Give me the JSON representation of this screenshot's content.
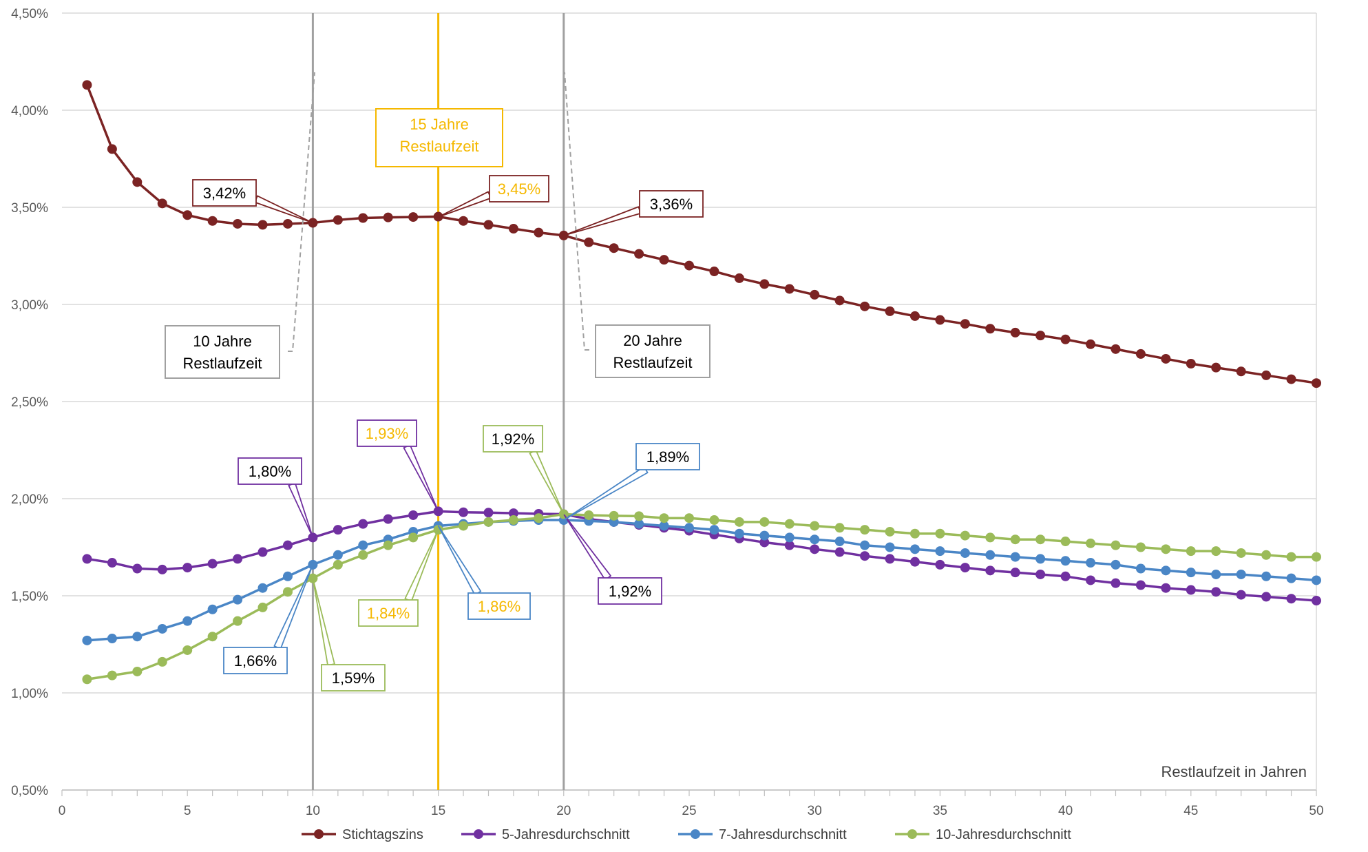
{
  "chart_data": {
    "type": "line",
    "title": "",
    "xlabel": "Restlaufzeit in Jahren",
    "ylabel": "",
    "xlim": [
      0,
      50
    ],
    "ylim": [
      0.5,
      4.5
    ],
    "grid": "horizontal",
    "legend_position": "bottom",
    "x_ticks": [
      0,
      5,
      10,
      15,
      20,
      25,
      30,
      35,
      40,
      45,
      50
    ],
    "x_tick_labels": [
      "0",
      "5",
      "10",
      "15",
      "20",
      "25",
      "30",
      "35",
      "40",
      "45",
      "50"
    ],
    "y_ticks": [
      0.5,
      1.0,
      1.5,
      2.0,
      2.5,
      3.0,
      3.5,
      4.0,
      4.5
    ],
    "y_tick_labels": [
      "0,50%",
      "1,00%",
      "1,50%",
      "2,00%",
      "2,50%",
      "3,00%",
      "3,50%",
      "4,00%",
      "4,50%"
    ],
    "x": [
      1,
      2,
      3,
      4,
      5,
      6,
      7,
      8,
      9,
      10,
      11,
      12,
      13,
      14,
      15,
      16,
      17,
      18,
      19,
      20,
      21,
      22,
      23,
      24,
      25,
      26,
      27,
      28,
      29,
      30,
      31,
      32,
      33,
      34,
      35,
      36,
      37,
      38,
      39,
      40,
      41,
      42,
      43,
      44,
      45,
      46,
      47,
      48,
      49,
      50
    ],
    "series": [
      {
        "name": "Stichtagszins",
        "color": "#7b2323",
        "values": [
          4.13,
          3.8,
          3.63,
          3.52,
          3.46,
          3.43,
          3.415,
          3.41,
          3.415,
          3.42,
          3.435,
          3.445,
          3.448,
          3.45,
          3.452,
          3.43,
          3.41,
          3.39,
          3.37,
          3.355,
          3.32,
          3.29,
          3.26,
          3.23,
          3.2,
          3.17,
          3.135,
          3.105,
          3.08,
          3.05,
          3.02,
          2.99,
          2.965,
          2.94,
          2.92,
          2.9,
          2.875,
          2.855,
          2.84,
          2.82,
          2.795,
          2.77,
          2.745,
          2.72,
          2.695,
          2.675,
          2.655,
          2.635,
          2.615,
          2.595
        ]
      },
      {
        "name": "5-Jahresdurchschnitt",
        "color": "#7030a0",
        "values": [
          1.69,
          1.67,
          1.64,
          1.635,
          1.645,
          1.665,
          1.69,
          1.725,
          1.76,
          1.8,
          1.84,
          1.87,
          1.895,
          1.915,
          1.935,
          1.93,
          1.928,
          1.925,
          1.922,
          1.92,
          1.895,
          1.88,
          1.865,
          1.85,
          1.835,
          1.815,
          1.795,
          1.775,
          1.76,
          1.74,
          1.725,
          1.705,
          1.69,
          1.675,
          1.66,
          1.645,
          1.63,
          1.62,
          1.61,
          1.6,
          1.58,
          1.565,
          1.555,
          1.54,
          1.53,
          1.52,
          1.505,
          1.495,
          1.485,
          1.475
        ]
      },
      {
        "name": "7-Jahresdurchschnitt",
        "color": "#4a86c6",
        "values": [
          1.27,
          1.28,
          1.29,
          1.33,
          1.37,
          1.43,
          1.48,
          1.54,
          1.6,
          1.66,
          1.71,
          1.76,
          1.79,
          1.83,
          1.86,
          1.87,
          1.88,
          1.885,
          1.89,
          1.89,
          1.885,
          1.88,
          1.87,
          1.86,
          1.85,
          1.84,
          1.82,
          1.81,
          1.8,
          1.79,
          1.78,
          1.76,
          1.75,
          1.74,
          1.73,
          1.72,
          1.71,
          1.7,
          1.69,
          1.68,
          1.67,
          1.66,
          1.64,
          1.63,
          1.62,
          1.61,
          1.61,
          1.6,
          1.59,
          1.58
        ]
      },
      {
        "name": "10-Jahresdurchschnitt",
        "color": "#9bbb59",
        "values": [
          1.07,
          1.09,
          1.11,
          1.16,
          1.22,
          1.29,
          1.37,
          1.44,
          1.52,
          1.59,
          1.66,
          1.71,
          1.76,
          1.8,
          1.84,
          1.86,
          1.88,
          1.89,
          1.9,
          1.92,
          1.915,
          1.912,
          1.91,
          1.9,
          1.9,
          1.89,
          1.88,
          1.88,
          1.87,
          1.86,
          1.85,
          1.84,
          1.83,
          1.82,
          1.82,
          1.81,
          1.8,
          1.79,
          1.79,
          1.78,
          1.77,
          1.76,
          1.75,
          1.74,
          1.73,
          1.73,
          1.72,
          1.71,
          1.7,
          1.7
        ]
      }
    ],
    "vertical_lines": [
      {
        "x": 10,
        "color": "#a0a0a0"
      },
      {
        "x": 15,
        "color": "#f5b800"
      },
      {
        "x": 20,
        "color": "#a0a0a0"
      }
    ],
    "reference_boxes": [
      {
        "lines": [
          "10 Jahre",
          "Restlaufzeit"
        ],
        "color": "#a0a0a0",
        "text_color": "#000000"
      },
      {
        "lines": [
          "15 Jahre",
          "Restlaufzeit"
        ],
        "color": "#f5b800",
        "text_color": "#f5b800"
      },
      {
        "lines": [
          "20 Jahre",
          "Restlaufzeit"
        ],
        "color": "#a0a0a0",
        "text_color": "#000000"
      }
    ],
    "annotations": [
      {
        "text": "3,42%",
        "x": 10,
        "y": 3.42,
        "border": "#7b2323",
        "text_color": "#000000"
      },
      {
        "text": "3,45%",
        "x": 15,
        "y": 3.45,
        "border": "#7b2323",
        "text_color": "#f5b800"
      },
      {
        "text": "3,36%",
        "x": 20,
        "y": 3.355,
        "border": "#7b2323",
        "text_color": "#000000"
      },
      {
        "text": "1,80%",
        "x": 10,
        "y": 1.8,
        "border": "#7030a0",
        "text_color": "#000000"
      },
      {
        "text": "1,93%",
        "x": 15,
        "y": 1.935,
        "border": "#7030a0",
        "text_color": "#f5b800"
      },
      {
        "text": "1,92%",
        "x": 20,
        "y": 1.92,
        "border": "#7030a0",
        "text_color": "#000000"
      },
      {
        "text": "1,66%",
        "x": 10,
        "y": 1.66,
        "border": "#4a86c6",
        "text_color": "#000000"
      },
      {
        "text": "1,86%",
        "x": 15,
        "y": 1.86,
        "border": "#4a86c6",
        "text_color": "#f5b800"
      },
      {
        "text": "1,89%",
        "x": 20,
        "y": 1.89,
        "border": "#4a86c6",
        "text_color": "#000000"
      },
      {
        "text": "1,59%",
        "x": 10,
        "y": 1.59,
        "border": "#9bbb59",
        "text_color": "#000000"
      },
      {
        "text": "1,84%",
        "x": 15,
        "y": 1.84,
        "border": "#9bbb59",
        "text_color": "#f5b800"
      },
      {
        "text": "1,92%",
        "x": 20,
        "y": 1.92,
        "border": "#9bbb59",
        "text_color": "#000000"
      }
    ]
  }
}
